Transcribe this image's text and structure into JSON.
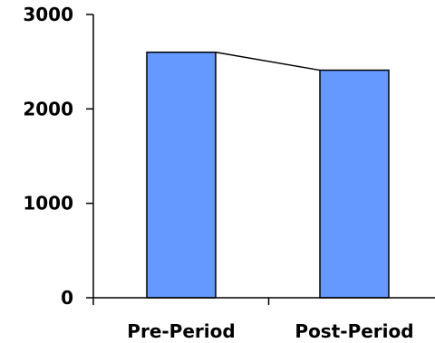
{
  "chart_data": {
    "type": "bar",
    "title": "",
    "xlabel": "",
    "ylabel": "",
    "categories": [
      "Pre-Period",
      "Post-Period"
    ],
    "values": [
      2600,
      2410
    ],
    "ylim": [
      0,
      3000
    ],
    "yticks": [
      0,
      1000,
      2000,
      3000
    ],
    "ytick_labels": [
      "0",
      "1000",
      "2000",
      "3000"
    ],
    "connector_line": true,
    "grid": false,
    "legend": "none",
    "colors": {
      "bar_fill": "#6699ff",
      "bar_stroke": "#000000",
      "axis": "#000000"
    }
  }
}
